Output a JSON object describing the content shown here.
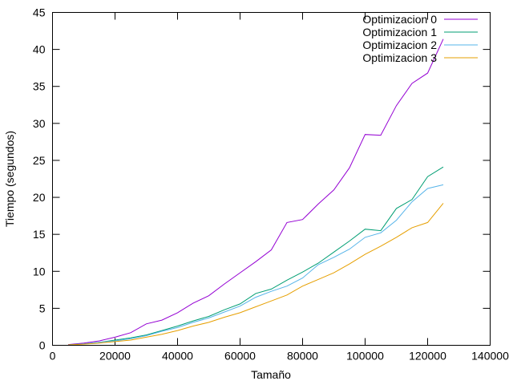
{
  "chart_data": {
    "type": "line",
    "title": "",
    "xlabel": "Tamaño",
    "ylabel": "Tiempo (segundos)",
    "xlim": [
      0,
      140000
    ],
    "ylim": [
      0,
      45
    ],
    "xticks": [
      0,
      20000,
      40000,
      60000,
      80000,
      100000,
      120000,
      140000
    ],
    "xtick_labels": [
      "0",
      "20000",
      "40000",
      "60000",
      "80000",
      "100000",
      "120000",
      "140000"
    ],
    "yticks": [
      0,
      5,
      10,
      15,
      20,
      25,
      30,
      35,
      40,
      45
    ],
    "ytick_labels": [
      "0",
      "5",
      "10",
      "15",
      "20",
      "25",
      "30",
      "35",
      "40",
      "45"
    ],
    "grid": false,
    "legend_position": "top-right",
    "x": [
      5000,
      10000,
      15000,
      20000,
      25000,
      30000,
      35000,
      40000,
      45000,
      50000,
      55000,
      60000,
      65000,
      70000,
      75000,
      80000,
      85000,
      90000,
      95000,
      100000,
      105000,
      110000,
      115000,
      120000,
      125000
    ],
    "series": [
      {
        "name": "Optimizacion 0",
        "color": "#9400d3",
        "values": [
          0.1,
          0.3,
          0.6,
          1.1,
          1.7,
          2.9,
          3.4,
          4.4,
          5.7,
          6.7,
          8.3,
          9.8,
          11.3,
          12.9,
          16.6,
          17.0,
          19.1,
          21.0,
          24.0,
          28.5,
          28.4,
          32.4,
          35.4,
          36.8,
          41.4
        ]
      },
      {
        "name": "Optimizacion 1",
        "color": "#009e73",
        "values": [
          0.05,
          0.2,
          0.4,
          0.7,
          1.0,
          1.4,
          2.0,
          2.6,
          3.3,
          3.9,
          4.8,
          5.6,
          7.0,
          7.6,
          8.8,
          9.9,
          11.1,
          12.6,
          14.1,
          15.7,
          15.5,
          18.5,
          19.7,
          22.8,
          24.1
        ]
      },
      {
        "name": "Optimizacion 2",
        "color": "#56b4e9",
        "values": [
          0.05,
          0.2,
          0.4,
          0.6,
          0.9,
          1.3,
          1.9,
          2.4,
          3.1,
          3.7,
          4.5,
          5.3,
          6.5,
          7.3,
          8.0,
          9.1,
          10.9,
          11.9,
          13.0,
          14.6,
          15.2,
          16.9,
          19.4,
          21.2,
          21.7
        ]
      },
      {
        "name": "Optimizacion 3",
        "color": "#e69f00",
        "values": [
          0.05,
          0.15,
          0.3,
          0.5,
          0.7,
          1.1,
          1.5,
          2.0,
          2.6,
          3.1,
          3.8,
          4.4,
          5.2,
          6.0,
          6.8,
          8.0,
          8.9,
          9.8,
          11.0,
          12.3,
          13.4,
          14.6,
          15.9,
          16.6,
          19.2
        ]
      }
    ]
  }
}
